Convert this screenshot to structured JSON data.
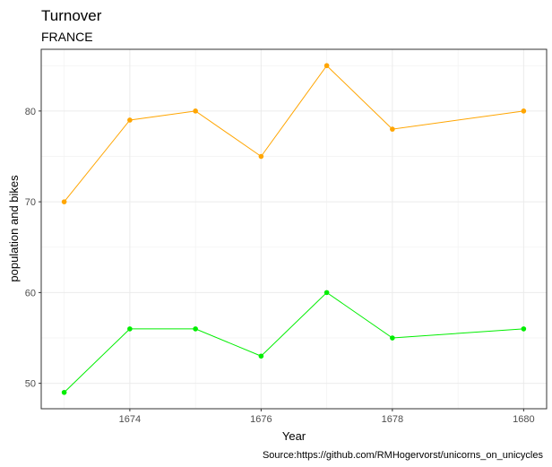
{
  "chart_data": {
    "type": "line",
    "title": "Turnover",
    "subtitle": "FRANCE",
    "xlabel": "Year",
    "ylabel": "population and bikes",
    "caption": "Source:https://github.com/RMHogervorst/unicorns_on_unicycles",
    "x": [
      1673,
      1674,
      1675,
      1676,
      1677,
      1678,
      1680
    ],
    "series": [
      {
        "color": "#FFA500",
        "values": [
          70,
          79,
          80,
          75,
          85,
          78,
          80
        ]
      },
      {
        "color": "#00EE00",
        "values": [
          49,
          56,
          56,
          53,
          60,
          55,
          56
        ]
      }
    ],
    "xlim": [
      1672.65,
      1680.35
    ],
    "ylim": [
      47.2,
      86.8
    ],
    "x_ticks": [
      "1674",
      "1676",
      "1678",
      "1680"
    ],
    "y_ticks": [
      "50",
      "60",
      "70",
      "80"
    ],
    "grid": true,
    "legend": "none"
  }
}
